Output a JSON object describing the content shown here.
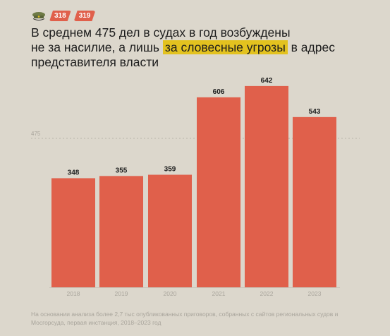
{
  "badges": [
    "318",
    "319"
  ],
  "icons": {
    "badge_icon": "military-cap-icon"
  },
  "title": {
    "part1": "В среднем 475 дел в судах в год возбуждены",
    "part2": "не за насилие, а лишь ",
    "highlight": "за словесные угрозы",
    "part3": "  в адрес",
    "part4": "представителя власти"
  },
  "footnote": "На основании анализа более 2,7 тыс опубликованных приговоров, собранных с сайтов региональных судов и Мосгорсуда, первая инстанция, 2018–2023 год",
  "colors": {
    "background": "#dcd7cc",
    "bar": "#e0604b",
    "highlight": "#e3c21f",
    "text": "#1d1d1d",
    "muted": "#a9a59c"
  },
  "chart_data": {
    "type": "bar",
    "categories": [
      "2018",
      "2019",
      "2020",
      "2021",
      "2022",
      "2023"
    ],
    "values": [
      348,
      355,
      359,
      606,
      642,
      543
    ],
    "reference_line": {
      "value": 475,
      "label": "475"
    },
    "ylim": [
      0,
      680
    ],
    "grid": false,
    "xlabel": "",
    "ylabel": ""
  }
}
